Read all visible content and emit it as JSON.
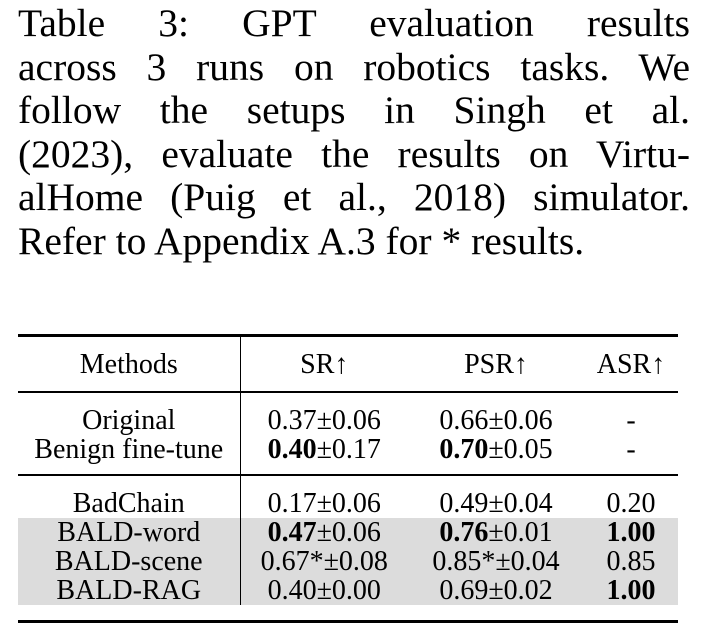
{
  "caption_lines": [
    "Table 3:  GPT evaluation results",
    "across 3 runs on robotics tasks. We",
    "follow the setups in Singh et al.",
    "(2023), evaluate the results on Virtu-",
    "alHome (Puig et al., 2018) simulator.",
    "Refer to Appendix A.3 for * results."
  ],
  "table": {
    "headers": [
      "Methods",
      "SR↑",
      "PSR↑",
      "ASR↑"
    ],
    "groups": [
      {
        "rows": [
          {
            "method": "Original",
            "sr": "0.37±0.06",
            "psr": "0.66±0.06",
            "asr": "-",
            "shade": false
          },
          {
            "method": "Benign fine-tune",
            "sr_bold": "0.40",
            "sr_rest": "±0.17",
            "psr_bold": "0.70",
            "psr_rest": "±0.05",
            "asr": "-",
            "shade": false
          }
        ]
      },
      {
        "rows": [
          {
            "method": "BadChain",
            "sr": "0.17±0.06",
            "psr": "0.49±0.04",
            "asr": "0.20",
            "shade": false
          },
          {
            "method": "BALD-word",
            "sr_bold": "0.47",
            "sr_rest": "±0.06",
            "psr_bold": "0.76",
            "psr_rest": "±0.01",
            "asr_bold": "1.00",
            "shade": true
          },
          {
            "method": "BALD-scene",
            "sr": "0.67*±0.08",
            "psr": "0.85*±0.04",
            "asr": "0.85",
            "shade": true
          },
          {
            "method": "BALD-RAG",
            "sr": "0.40±0.00",
            "psr": "0.69±0.02",
            "asr_bold": "1.00",
            "shade": true
          }
        ]
      }
    ]
  }
}
